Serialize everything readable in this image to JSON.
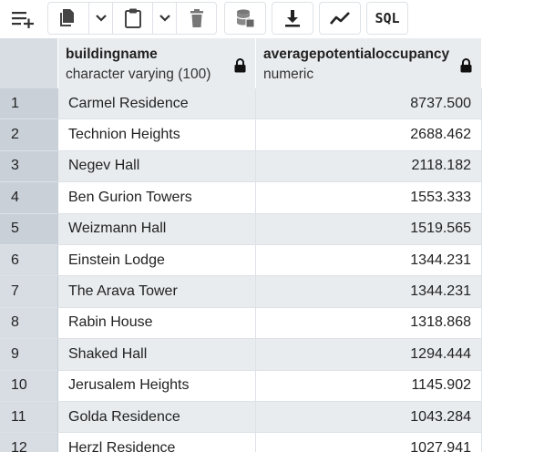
{
  "toolbar": {
    "buttons": [
      {
        "icon": "add-row-icon"
      },
      {
        "icon": "copy-icon"
      },
      {
        "icon": "paste-icon"
      },
      {
        "icon": "delete-icon"
      },
      {
        "icon": "save-data-icon"
      },
      {
        "icon": "download-icon"
      },
      {
        "icon": "graph-icon"
      }
    ],
    "sql_label": "SQL"
  },
  "grid": {
    "columns": [
      {
        "name": "buildingname",
        "type": "character varying (100)"
      },
      {
        "name": "averagepotentialoccupancy",
        "type": "numeric"
      }
    ],
    "rows": [
      {
        "n": "1",
        "buildingname": "Carmel Residence",
        "avg": "8737.500"
      },
      {
        "n": "2",
        "buildingname": "Technion Heights",
        "avg": "2688.462"
      },
      {
        "n": "3",
        "buildingname": "Negev Hall",
        "avg": "2118.182"
      },
      {
        "n": "4",
        "buildingname": "Ben Gurion Towers",
        "avg": "1553.333"
      },
      {
        "n": "5",
        "buildingname": "Weizmann Hall",
        "avg": "1519.565"
      },
      {
        "n": "6",
        "buildingname": "Einstein Lodge",
        "avg": "1344.231"
      },
      {
        "n": "7",
        "buildingname": "The Arava Tower",
        "avg": "1344.231"
      },
      {
        "n": "8",
        "buildingname": "Rabin House",
        "avg": "1318.868"
      },
      {
        "n": "9",
        "buildingname": "Shaked Hall",
        "avg": "1294.444"
      },
      {
        "n": "10",
        "buildingname": "Jerusalem Heights",
        "avg": "1145.902"
      },
      {
        "n": "11",
        "buildingname": "Golda Residence",
        "avg": "1043.284"
      },
      {
        "n": "12",
        "buildingname": "Herzl Residence",
        "avg": "1027.941"
      }
    ]
  },
  "colors": {
    "header_bg": "#e9ecef",
    "rownum_bg": "#d8dde3",
    "stripe_bg": "#e9ecef",
    "border": "#dee2e6"
  }
}
